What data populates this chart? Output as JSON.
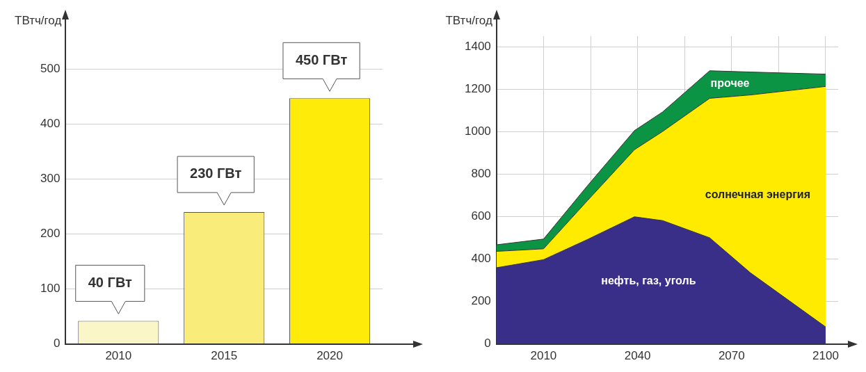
{
  "chart_data": [
    {
      "type": "bar",
      "ylabel": "ТВтч/год",
      "categories": [
        "2010",
        "2015",
        "2020"
      ],
      "values": [
        42,
        240,
        447
      ],
      "colors": [
        "#faf6c8",
        "#f9ec7a",
        "#ffeb0a"
      ],
      "ylim": [
        0,
        560
      ],
      "yticks": [
        0,
        100,
        200,
        300,
        400,
        500
      ],
      "grid": "y",
      "annotations": [
        {
          "text": "40 ГВт",
          "x": "2010",
          "y": 42
        },
        {
          "text": "230 ГВт",
          "x": "2015",
          "y": 240
        },
        {
          "text": "450 ГВт",
          "x": "2020",
          "y": 447
        }
      ]
    },
    {
      "type": "area",
      "stacked": true,
      "ylabel": "ТВтч/год",
      "x": [
        1995,
        2010,
        2024,
        2039,
        2048,
        2063,
        2076,
        2100
      ],
      "series": [
        {
          "name": "нефть, газ, уголь",
          "color": "#3a2f88",
          "values": [
            359,
            397,
            492,
            599,
            581,
            500,
            335,
            80
          ]
        },
        {
          "name": "солнечная энергия",
          "color": "#ffeb00",
          "values": [
            77,
            51,
            183,
            316,
            420,
            657,
            838,
            1133
          ]
        },
        {
          "name": "прочее",
          "color": "#0b9444",
          "values": [
            31,
            46,
            70,
            90,
            92,
            130,
            108,
            58
          ]
        }
      ],
      "xlim": [
        1995,
        2104
      ],
      "xticks": [
        2010,
        {
          "value": 2025,
          "label": null
        },
        2040,
        {
          "value": 2055,
          "label": null
        },
        2070,
        {
          "value": 2085,
          "label": null
        },
        2100
      ],
      "ylim": [
        0,
        1450
      ],
      "yticks": [
        0,
        200,
        400,
        600,
        800,
        1000,
        1200,
        1400
      ],
      "grid": true
    }
  ]
}
